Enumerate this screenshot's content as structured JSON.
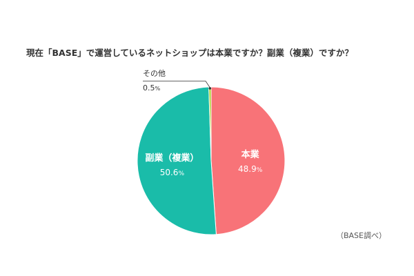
{
  "title": "現在「BASE」で運営しているネットショップは本業ですか？副業（複業）ですか？",
  "source": "（BASE調べ）",
  "colors": {
    "main_job": "#F87378",
    "side_job": "#1ABCA9",
    "other": "#A8D12E",
    "divider": "#ffffff",
    "leader": "#333333"
  },
  "chart_data": {
    "type": "pie",
    "title": "現在「BASE」で運営しているネットショップは本業ですか？副業（複業）ですか？",
    "slices": [
      {
        "key": "main_job",
        "label": "本業",
        "value": 48.9,
        "value_label": "48.9",
        "unit": "%"
      },
      {
        "key": "side_job",
        "label": "副業（複業）",
        "value": 50.6,
        "value_label": "50.6",
        "unit": "%"
      },
      {
        "key": "other",
        "label": "その他",
        "value": 0.5,
        "value_label": "0.5",
        "unit": "%"
      }
    ],
    "start": "top",
    "direction": "clockwise",
    "legend": "none"
  }
}
